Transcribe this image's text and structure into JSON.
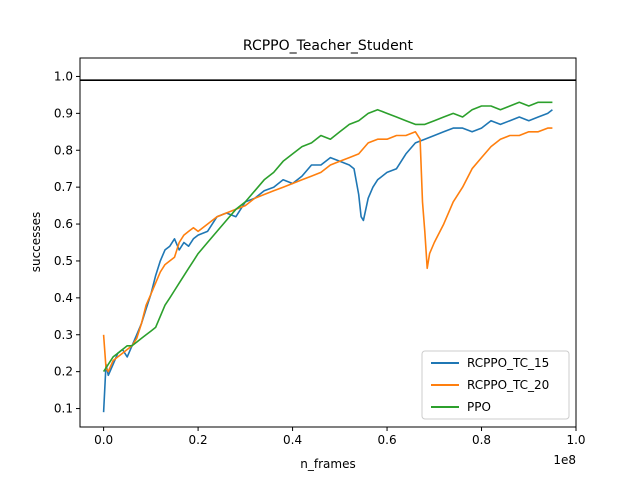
{
  "chart_data": {
    "type": "line",
    "title": "RCPPO_Teacher_Student",
    "xlabel": "n_frames",
    "ylabel": "successes",
    "x_offset_label": "1e8",
    "xlim": [
      -0.05,
      1.0
    ],
    "ylim": [
      0.05,
      1.05
    ],
    "x_ticks": [
      0.0,
      0.2,
      0.4,
      0.6,
      0.8,
      1.0
    ],
    "x_tick_labels": [
      "0.0",
      "0.2",
      "0.4",
      "0.6",
      "0.8",
      "1.0"
    ],
    "y_ticks": [
      0.1,
      0.2,
      0.3,
      0.4,
      0.5,
      0.6,
      0.7,
      0.8,
      0.9,
      1.0
    ],
    "y_tick_labels": [
      "0.1",
      "0.2",
      "0.3",
      "0.4",
      "0.5",
      "0.6",
      "0.7",
      "0.8",
      "0.9",
      "1.0"
    ],
    "hline": {
      "y": 0.99,
      "color": "#000000"
    },
    "grid": false,
    "legend_position": "lower-right",
    "series": [
      {
        "name": "RCPPO_TC_15",
        "color": "#1f77b4",
        "x": [
          0.0,
          0.005,
          0.01,
          0.02,
          0.03,
          0.04,
          0.05,
          0.06,
          0.07,
          0.08,
          0.09,
          0.1,
          0.11,
          0.12,
          0.13,
          0.14,
          0.15,
          0.16,
          0.17,
          0.18,
          0.19,
          0.2,
          0.22,
          0.24,
          0.26,
          0.28,
          0.3,
          0.32,
          0.34,
          0.36,
          0.38,
          0.4,
          0.42,
          0.44,
          0.46,
          0.48,
          0.5,
          0.52,
          0.53,
          0.54,
          0.545,
          0.55,
          0.555,
          0.56,
          0.57,
          0.58,
          0.6,
          0.62,
          0.64,
          0.66,
          0.68,
          0.7,
          0.72,
          0.74,
          0.76,
          0.78,
          0.8,
          0.82,
          0.84,
          0.86,
          0.88,
          0.9,
          0.92,
          0.94,
          0.95
        ],
        "y": [
          0.09,
          0.22,
          0.19,
          0.22,
          0.25,
          0.26,
          0.24,
          0.27,
          0.3,
          0.33,
          0.37,
          0.41,
          0.46,
          0.5,
          0.53,
          0.54,
          0.56,
          0.53,
          0.55,
          0.54,
          0.56,
          0.57,
          0.58,
          0.62,
          0.63,
          0.62,
          0.66,
          0.67,
          0.69,
          0.7,
          0.72,
          0.71,
          0.73,
          0.76,
          0.76,
          0.78,
          0.77,
          0.76,
          0.75,
          0.68,
          0.62,
          0.61,
          0.64,
          0.67,
          0.7,
          0.72,
          0.74,
          0.75,
          0.79,
          0.82,
          0.83,
          0.84,
          0.85,
          0.86,
          0.86,
          0.85,
          0.86,
          0.88,
          0.87,
          0.88,
          0.89,
          0.88,
          0.89,
          0.9,
          0.91
        ]
      },
      {
        "name": "RCPPO_TC_20",
        "color": "#ff7f0e",
        "x": [
          0.0,
          0.005,
          0.01,
          0.02,
          0.03,
          0.04,
          0.05,
          0.06,
          0.07,
          0.08,
          0.09,
          0.1,
          0.11,
          0.12,
          0.13,
          0.14,
          0.15,
          0.16,
          0.17,
          0.18,
          0.19,
          0.2,
          0.22,
          0.24,
          0.26,
          0.28,
          0.3,
          0.32,
          0.34,
          0.36,
          0.38,
          0.4,
          0.42,
          0.44,
          0.46,
          0.48,
          0.5,
          0.52,
          0.54,
          0.56,
          0.58,
          0.6,
          0.62,
          0.64,
          0.66,
          0.67,
          0.675,
          0.68,
          0.685,
          0.69,
          0.7,
          0.72,
          0.74,
          0.76,
          0.78,
          0.8,
          0.82,
          0.84,
          0.86,
          0.88,
          0.9,
          0.92,
          0.94,
          0.95
        ],
        "y": [
          0.3,
          0.21,
          0.2,
          0.23,
          0.24,
          0.25,
          0.26,
          0.27,
          0.29,
          0.33,
          0.38,
          0.41,
          0.44,
          0.47,
          0.49,
          0.5,
          0.51,
          0.55,
          0.57,
          0.58,
          0.59,
          0.58,
          0.6,
          0.62,
          0.63,
          0.64,
          0.65,
          0.67,
          0.68,
          0.69,
          0.7,
          0.71,
          0.72,
          0.73,
          0.74,
          0.76,
          0.77,
          0.78,
          0.79,
          0.82,
          0.83,
          0.83,
          0.84,
          0.84,
          0.85,
          0.83,
          0.66,
          0.58,
          0.48,
          0.52,
          0.55,
          0.6,
          0.66,
          0.7,
          0.75,
          0.78,
          0.81,
          0.83,
          0.84,
          0.84,
          0.85,
          0.85,
          0.86,
          0.86
        ]
      },
      {
        "name": "PPO",
        "color": "#2ca02c",
        "x": [
          0.0,
          0.005,
          0.01,
          0.02,
          0.03,
          0.04,
          0.05,
          0.06,
          0.07,
          0.08,
          0.09,
          0.1,
          0.11,
          0.12,
          0.13,
          0.14,
          0.15,
          0.16,
          0.17,
          0.18,
          0.19,
          0.2,
          0.22,
          0.24,
          0.26,
          0.28,
          0.3,
          0.32,
          0.34,
          0.36,
          0.38,
          0.4,
          0.42,
          0.44,
          0.46,
          0.48,
          0.5,
          0.52,
          0.54,
          0.56,
          0.58,
          0.6,
          0.62,
          0.64,
          0.66,
          0.68,
          0.7,
          0.72,
          0.74,
          0.76,
          0.78,
          0.8,
          0.82,
          0.84,
          0.86,
          0.88,
          0.9,
          0.92,
          0.94,
          0.95
        ],
        "y": [
          0.2,
          0.21,
          0.22,
          0.24,
          0.25,
          0.26,
          0.27,
          0.27,
          0.28,
          0.29,
          0.3,
          0.31,
          0.32,
          0.35,
          0.38,
          0.4,
          0.42,
          0.44,
          0.46,
          0.48,
          0.5,
          0.52,
          0.55,
          0.58,
          0.61,
          0.64,
          0.66,
          0.69,
          0.72,
          0.74,
          0.77,
          0.79,
          0.81,
          0.82,
          0.84,
          0.83,
          0.85,
          0.87,
          0.88,
          0.9,
          0.91,
          0.9,
          0.89,
          0.88,
          0.87,
          0.87,
          0.88,
          0.89,
          0.9,
          0.89,
          0.91,
          0.92,
          0.92,
          0.91,
          0.92,
          0.93,
          0.92,
          0.93,
          0.93,
          0.93
        ]
      }
    ]
  }
}
